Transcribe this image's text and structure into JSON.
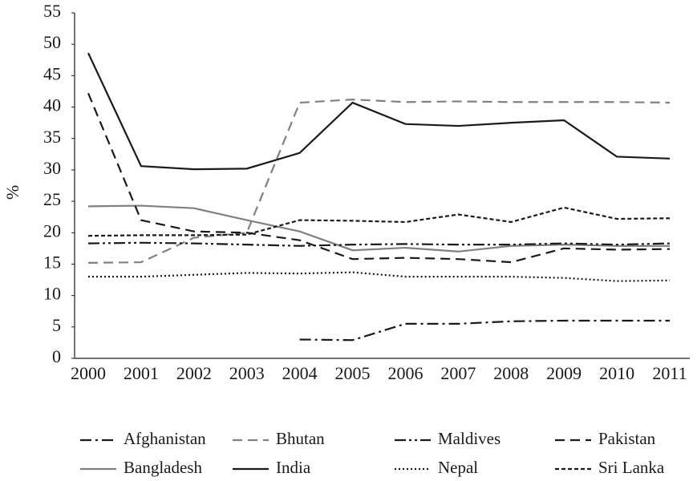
{
  "chart_data": {
    "type": "line",
    "y_label": "%",
    "categories": [
      "2000",
      "2001",
      "2002",
      "2003",
      "2004",
      "2005",
      "2006",
      "2007",
      "2008",
      "2009",
      "2010",
      "2011"
    ],
    "ylim": [
      0,
      55
    ],
    "yticks": [
      0,
      5,
      10,
      15,
      20,
      25,
      30,
      35,
      40,
      45,
      50,
      55
    ],
    "grid": false,
    "legend": "bottom",
    "series": [
      {
        "name": "Afghanistan",
        "color": "#1a1a1a",
        "dash": "dashdot",
        "values": [
          null,
          null,
          null,
          null,
          3,
          2.9,
          5.5,
          5.5,
          5.9,
          6,
          6,
          6
        ]
      },
      {
        "name": "Bangladesh",
        "color": "#808080",
        "dash": "solid",
        "values": [
          24.2,
          24.3,
          23.9,
          22,
          20.2,
          17.2,
          17.6,
          17,
          17.9,
          18.1,
          17.9,
          17.9
        ]
      },
      {
        "name": "Bhutan",
        "color": "#808080",
        "dash": "dashed",
        "values": [
          15.2,
          15.3,
          19.2,
          20,
          40.7,
          41.2,
          40.8,
          40.9,
          40.8,
          40.8,
          40.8,
          40.7
        ]
      },
      {
        "name": "India",
        "color": "#1a1a1a",
        "dash": "solid",
        "values": [
          48.6,
          30.6,
          30.1,
          30.2,
          32.7,
          40.7,
          37.3,
          37,
          37.5,
          37.9,
          32.1,
          31.8
        ]
      },
      {
        "name": "Maldives",
        "color": "#1a1a1a",
        "dash": "dashdotdot",
        "values": [
          18.3,
          18.4,
          18.3,
          18.1,
          17.9,
          18.1,
          18.2,
          18.1,
          18.1,
          18.3,
          18.1,
          18.3
        ]
      },
      {
        "name": "Nepal",
        "color": "#1a1a1a",
        "dash": "dotted",
        "values": [
          13,
          13,
          13.3,
          13.6,
          13.5,
          13.7,
          13,
          13,
          13,
          12.8,
          12.3,
          12.4
        ]
      },
      {
        "name": "Pakistan",
        "color": "#1a1a1a",
        "dash": "dashed",
        "values": [
          42.2,
          22,
          20.2,
          20,
          18.8,
          15.8,
          16,
          15.8,
          15.3,
          17.5,
          17.3,
          17.4
        ]
      },
      {
        "name": "Sri Lanka",
        "color": "#1a1a1a",
        "dash": "shortdash",
        "values": [
          19.5,
          19.6,
          19.6,
          19.7,
          22,
          21.9,
          21.7,
          22.9,
          21.7,
          24,
          22.2,
          22.3
        ]
      }
    ]
  }
}
